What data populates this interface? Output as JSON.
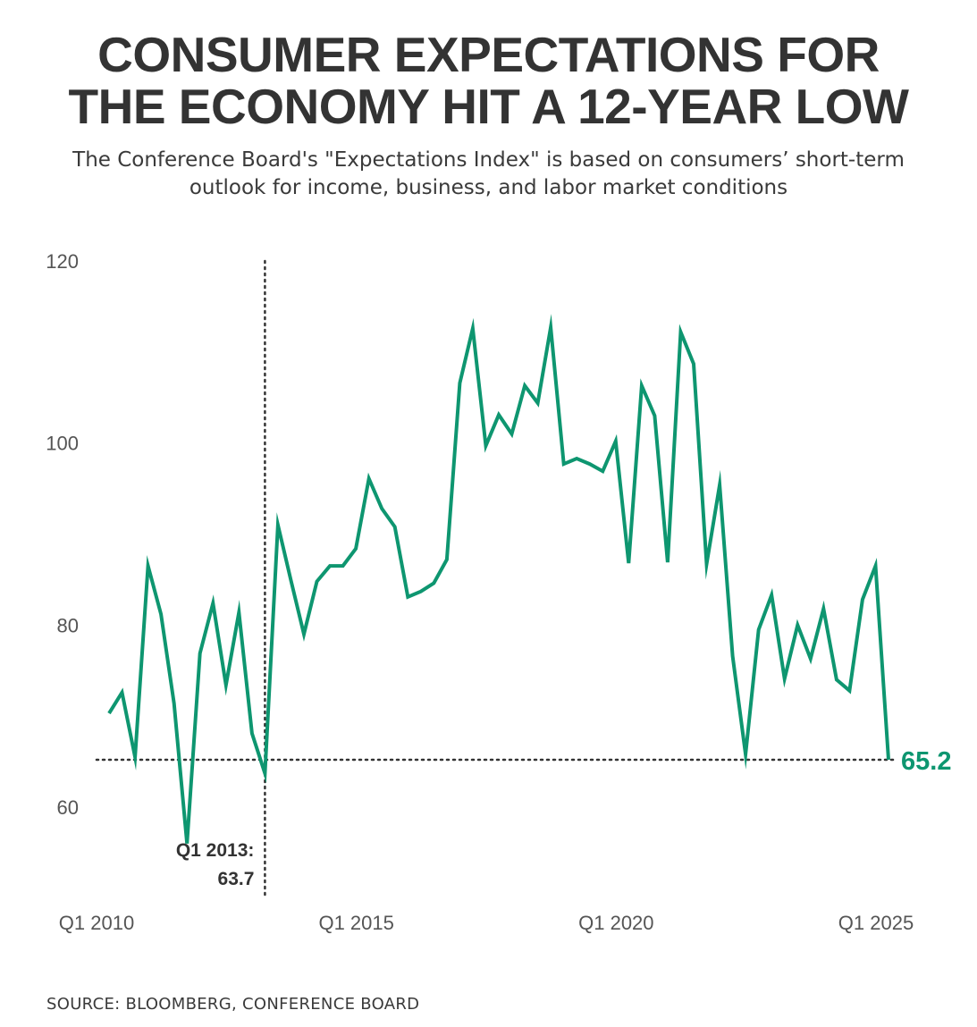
{
  "header": {
    "title_line1": "CONSUMER EXPECTATIONS FOR",
    "title_line2": "THE ECONOMY HIT A 12-YEAR LOW",
    "subtitle": "The Conference Board's \"Expectations Index\" is based on consumers’ short-term outlook for income, business, and labor market conditions"
  },
  "footer": {
    "source": "SOURCE: BLOOMBERG, CONFERENCE BOARD"
  },
  "colors": {
    "line": "#0e9670",
    "text": "#333333",
    "axis_label": "#555555",
    "reference_line": "#333333"
  },
  "chart_data": {
    "type": "line",
    "title": "CONSUMER EXPECTATIONS FOR THE ECONOMY HIT A 12-YEAR LOW",
    "subtitle": "The Conference Board's \"Expectations Index\" is based on consumers’ short-term outlook for income, business, and labor market conditions",
    "xlabel": "",
    "ylabel": "",
    "ylim": [
      50,
      120
    ],
    "yticks": [
      60,
      80,
      100,
      120
    ],
    "xticks": [
      "Q1 2010",
      "Q1 2015",
      "Q1 2020",
      "Q1 2025"
    ],
    "grid": false,
    "legend": "none",
    "x": [
      "Q1 2010",
      "Q2 2010",
      "Q3 2010",
      "Q4 2010",
      "Q1 2011",
      "Q2 2011",
      "Q3 2011",
      "Q4 2011",
      "Q1 2012",
      "Q2 2012",
      "Q3 2012",
      "Q4 2012",
      "Q1 2013",
      "Q2 2013",
      "Q3 2013",
      "Q4 2013",
      "Q1 2014",
      "Q2 2014",
      "Q3 2014",
      "Q4 2014",
      "Q1 2015",
      "Q2 2015",
      "Q3 2015",
      "Q4 2015",
      "Q1 2016",
      "Q2 2016",
      "Q3 2016",
      "Q4 2016",
      "Q1 2017",
      "Q2 2017",
      "Q3 2017",
      "Q4 2017",
      "Q1 2018",
      "Q2 2018",
      "Q3 2018",
      "Q4 2018",
      "Q1 2019",
      "Q2 2019",
      "Q3 2019",
      "Q4 2019",
      "Q1 2020",
      "Q2 2020",
      "Q3 2020",
      "Q4 2020",
      "Q1 2021",
      "Q2 2021",
      "Q3 2021",
      "Q4 2021",
      "Q1 2022",
      "Q2 2022",
      "Q3 2022",
      "Q4 2022",
      "Q1 2023",
      "Q2 2023",
      "Q3 2023",
      "Q4 2023",
      "Q1 2024",
      "Q2 2024",
      "Q3 2024",
      "Q4 2024",
      "Q1 2025"
    ],
    "series": [
      {
        "values": [
          70.3,
          72.6,
          65.5,
          86.5,
          81.2,
          71.4,
          56.0,
          76.9,
          82.4,
          73.4,
          81.4,
          68.1,
          63.7,
          91.0,
          84.9,
          79.0,
          84.8,
          86.5,
          86.5,
          88.4,
          96.1,
          92.8,
          90.8,
          83.1,
          83.7,
          84.6,
          87.2,
          106.6,
          112.6,
          99.7,
          103.1,
          101.0,
          106.3,
          104.4,
          112.7,
          97.7,
          98.3,
          97.7,
          96.9,
          100.2,
          86.8,
          106.3,
          103.0,
          86.9,
          112.2,
          108.7,
          86.7,
          95.4,
          76.6,
          65.8,
          79.5,
          83.3,
          74.1,
          80.0,
          76.3,
          81.8,
          74.0,
          72.8,
          82.8,
          86.5,
          65.2
        ]
      }
    ],
    "annotations": [
      {
        "label": "Q1 2013:",
        "value_text": "63.7",
        "x": "Q1 2013",
        "y": 63.7
      },
      {
        "label": "65.2",
        "x": "Q1 2025",
        "y": 65.2
      }
    ],
    "reference_lines": [
      {
        "orientation": "horizontal",
        "y": 65.2,
        "style": "dotted"
      },
      {
        "orientation": "vertical",
        "x": "Q1 2013",
        "style": "dotted"
      }
    ]
  }
}
